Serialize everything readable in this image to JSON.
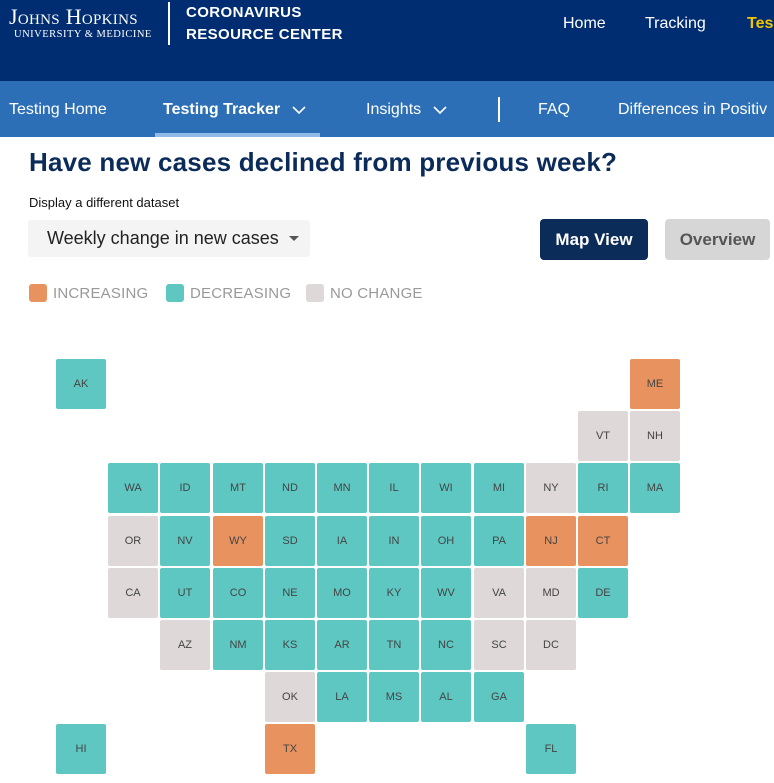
{
  "header": {
    "logo_main": "Johns Hopkins",
    "logo_sub": "UNIVERSITY & MEDICINE",
    "site_title_line1": "CORONAVIRUS",
    "site_title_line2": "RESOURCE CENTER",
    "nav": [
      "Home",
      "Tracking",
      "Tes"
    ]
  },
  "subnav": {
    "items": [
      "Testing Home",
      "Testing Tracker",
      "Insights",
      "FAQ",
      "Differences in Positiv"
    ]
  },
  "main": {
    "title": "Have new cases declined from previous week?",
    "dataset_label": "Display a different dataset",
    "dataset_value": "Weekly change in new cases",
    "map_view_label": "Map View",
    "overview_label": "Overview"
  },
  "legend": [
    {
      "label": "INCREASING",
      "color": "#e8935f"
    },
    {
      "label": "DECREASING",
      "color": "#5ec7c2"
    },
    {
      "label": "NO CHANGE",
      "color": "#ded8d8"
    }
  ],
  "colors": {
    "increasing": "#e8935f",
    "decreasing": "#5ec7c2",
    "no_change": "#ded8d8",
    "header_bg": "#002d72",
    "subnav_bg": "#2c6fb6",
    "accent_yellow": "#f1c400"
  },
  "states": [
    {
      "code": "AK",
      "status": "decreasing"
    },
    {
      "code": "ME",
      "status": "increasing"
    },
    {
      "code": "VT",
      "status": "no_change"
    },
    {
      "code": "NH",
      "status": "no_change"
    },
    {
      "code": "WA",
      "status": "decreasing"
    },
    {
      "code": "ID",
      "status": "decreasing"
    },
    {
      "code": "MT",
      "status": "decreasing"
    },
    {
      "code": "ND",
      "status": "decreasing"
    },
    {
      "code": "MN",
      "status": "decreasing"
    },
    {
      "code": "IL",
      "status": "decreasing"
    },
    {
      "code": "WI",
      "status": "decreasing"
    },
    {
      "code": "MI",
      "status": "decreasing"
    },
    {
      "code": "NY",
      "status": "no_change"
    },
    {
      "code": "RI",
      "status": "decreasing"
    },
    {
      "code": "MA",
      "status": "decreasing"
    },
    {
      "code": "OR",
      "status": "no_change"
    },
    {
      "code": "NV",
      "status": "decreasing"
    },
    {
      "code": "WY",
      "status": "increasing"
    },
    {
      "code": "SD",
      "status": "decreasing"
    },
    {
      "code": "IA",
      "status": "decreasing"
    },
    {
      "code": "IN",
      "status": "decreasing"
    },
    {
      "code": "OH",
      "status": "decreasing"
    },
    {
      "code": "PA",
      "status": "decreasing"
    },
    {
      "code": "NJ",
      "status": "increasing"
    },
    {
      "code": "CT",
      "status": "increasing"
    },
    {
      "code": "CA",
      "status": "no_change"
    },
    {
      "code": "UT",
      "status": "decreasing"
    },
    {
      "code": "CO",
      "status": "decreasing"
    },
    {
      "code": "NE",
      "status": "decreasing"
    },
    {
      "code": "MO",
      "status": "decreasing"
    },
    {
      "code": "KY",
      "status": "decreasing"
    },
    {
      "code": "WV",
      "status": "decreasing"
    },
    {
      "code": "VA",
      "status": "no_change"
    },
    {
      "code": "MD",
      "status": "no_change"
    },
    {
      "code": "DE",
      "status": "decreasing"
    },
    {
      "code": "AZ",
      "status": "no_change"
    },
    {
      "code": "NM",
      "status": "decreasing"
    },
    {
      "code": "KS",
      "status": "decreasing"
    },
    {
      "code": "AR",
      "status": "decreasing"
    },
    {
      "code": "TN",
      "status": "decreasing"
    },
    {
      "code": "NC",
      "status": "decreasing"
    },
    {
      "code": "SC",
      "status": "no_change"
    },
    {
      "code": "DC",
      "status": "no_change"
    },
    {
      "code": "OK",
      "status": "no_change"
    },
    {
      "code": "LA",
      "status": "decreasing"
    },
    {
      "code": "MS",
      "status": "decreasing"
    },
    {
      "code": "AL",
      "status": "decreasing"
    },
    {
      "code": "GA",
      "status": "decreasing"
    },
    {
      "code": "HI",
      "status": "decreasing"
    },
    {
      "code": "TX",
      "status": "increasing"
    },
    {
      "code": "FL",
      "status": "decreasing"
    }
  ]
}
